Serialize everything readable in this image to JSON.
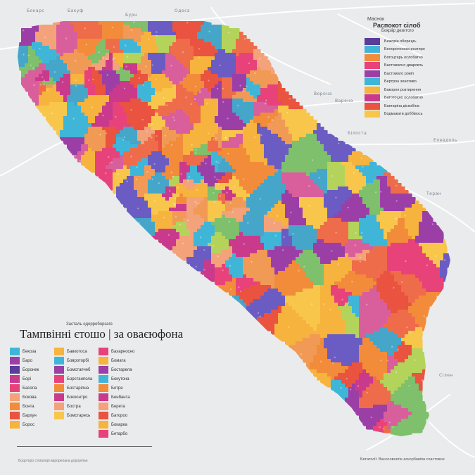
{
  "map": {
    "place_labels": [
      "Бокарс",
      "Бакуф",
      "Бурн",
      "Одеса",
      "Ворона",
      "Варена",
      "Білоста",
      "Елевдоль",
      "Теран",
      "Сілен"
    ],
    "palette": [
      "#f28c3b",
      "#e8427a",
      "#9b3fa7",
      "#3fb6d8",
      "#f6b33e",
      "#e9533f",
      "#f3a27a",
      "#c93a8c",
      "#6a5cc2",
      "#f7c64b",
      "#ef6c4a",
      "#d95f9c",
      "#7ec06b",
      "#b4d35a",
      "#45a6c9",
      "#f19a56"
    ],
    "roads_color": "#ffffff",
    "water_color": "#e9ebec"
  },
  "legend_top_right": {
    "title_small": "Маснок",
    "title": "Распокот сілоб",
    "subtitle": "Бокра́р дезитого",
    "items": [
      {
        "label": "Бежорін оборецгь",
        "color": "#5b3c9b"
      },
      {
        "label": "Белоротоника розтиро",
        "color": "#3fb6d8"
      },
      {
        "label": "Ботоцтарь ослобатчо",
        "color": "#f28c3b"
      },
      {
        "label": "Бастоматно дваровть",
        "color": "#e8427a"
      },
      {
        "label": "Бастомато ровіп",
        "color": "#9b3fa7"
      },
      {
        "label": "Бертрон зонотиво",
        "color": "#3fb6d8"
      },
      {
        "label": "Бакорон розтирення",
        "color": "#f6b33e"
      },
      {
        "label": "Батотоцно ослобатно",
        "color": "#c93a8c"
      },
      {
        "label": "Бактаріна діскобіна",
        "color": "#e9533f"
      },
      {
        "label": "Бодмакати доббівось",
        "color": "#f7c64b"
      }
    ]
  },
  "legend_bottom_left": {
    "subtitle": "Засталь одорроборзаге",
    "title": "Тампвінні єтошо | за оваєюфона",
    "col1": [
      {
        "label": "Бекоза",
        "color": "#3fb6d8"
      },
      {
        "label": "Баро",
        "color": "#9b3fa7"
      },
      {
        "label": "Боронек",
        "color": "#5b3c9b"
      },
      {
        "label": "Борі",
        "color": "#c93a8c"
      },
      {
        "label": "Басола",
        "color": "#e8427a"
      },
      {
        "label": "Бокова",
        "color": "#f3a27a"
      },
      {
        "label": "Бонта",
        "color": "#f28c3b"
      },
      {
        "label": "Бархун",
        "color": "#e9533f"
      },
      {
        "label": "Борос",
        "color": "#f6b33e"
      }
    ],
    "col2": [
      {
        "label": "Бавкотоса",
        "color": "#f6b33e"
      },
      {
        "label": "Бовроторбі",
        "color": "#3fb6d8"
      },
      {
        "label": "Бомстапчеб",
        "color": "#9b3fa7"
      },
      {
        "label": "Борстанпола",
        "color": "#e8427a"
      },
      {
        "label": "Бостарілна",
        "color": "#f28c3b"
      },
      {
        "label": "Бокоонтро",
        "color": "#c93a8c"
      },
      {
        "label": "Бостра",
        "color": "#f3a27a"
      },
      {
        "label": "Бомстаресь",
        "color": "#f7c64b"
      }
    ],
    "col3": [
      {
        "label": "Бахарносно",
        "color": "#e8427a"
      },
      {
        "label": "Бомата",
        "color": "#f6b33e"
      },
      {
        "label": "Бостарела",
        "color": "#9b3fa7"
      },
      {
        "label": "Бокутона",
        "color": "#3fb6d8"
      },
      {
        "label": "Ботре",
        "color": "#f28c3b"
      },
      {
        "label": "Бенбанта",
        "color": "#c93a8c"
      },
      {
        "label": "Берета",
        "color": "#f3a27a"
      },
      {
        "label": "Батороо",
        "color": "#e9533f"
      },
      {
        "label": "Бокарка",
        "color": "#f6b33e"
      },
      {
        "label": "Бетарбо",
        "color": "#e8427a"
      }
    ]
  },
  "source_right": "Бетатосії: Ваносовоктіе аскорбавіпа соастовне",
  "source_left": "Бодоторо стоіалорі варорелана дорорілан"
}
